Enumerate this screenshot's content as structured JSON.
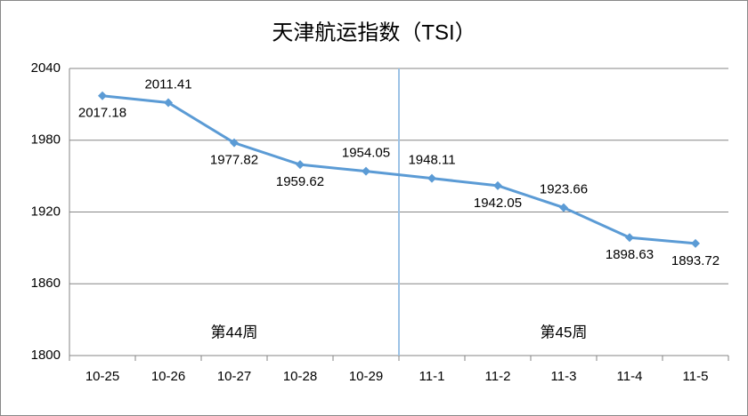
{
  "chart_data": {
    "type": "line",
    "title": "天津航运指数（TSI）",
    "categories": [
      "10-25",
      "10-26",
      "10-27",
      "10-28",
      "10-29",
      "11-1",
      "11-2",
      "11-3",
      "11-4",
      "11-5"
    ],
    "series": [
      {
        "name": "TSI",
        "color": "#5b9bd5",
        "values": [
          2017.18,
          2011.41,
          1977.82,
          1959.62,
          1954.05,
          1948.11,
          1942.05,
          1923.66,
          1898.63,
          1893.72
        ]
      }
    ],
    "annotations": [
      "第44周",
      "第45周"
    ],
    "ylim": [
      1800,
      2040
    ],
    "yticks": [
      1800,
      1860,
      1920,
      1980,
      2040
    ],
    "grid": true
  }
}
